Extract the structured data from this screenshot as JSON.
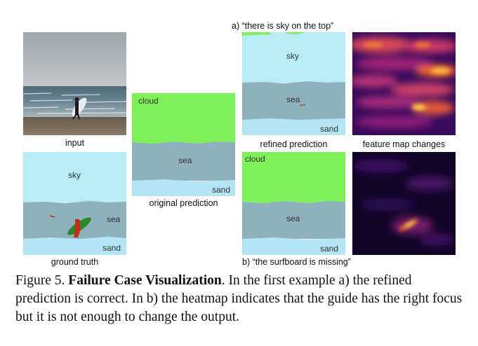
{
  "figure": {
    "label": "Figure 5.",
    "title": "Failure Case Visualization",
    "text": ". In the first example a) the refined prediction is correct. In b) the heatmap indicates that the guide has the right focus but it is not enough to change the output."
  },
  "headers": {
    "example_a": "a) “there is sky on the top”",
    "example_b": "b) “the surfboard is missing”"
  },
  "captions": {
    "input": "input",
    "ground_truth": "ground truth",
    "original_prediction": "original prediction",
    "refined_prediction": "refined prediction",
    "feature_map_changes": "feature map changes"
  },
  "segment_labels": {
    "sky": "sky",
    "sea": "sea",
    "sand": "sand",
    "cloud": "cloud"
  },
  "colors": {
    "sky": "#b8ecf6",
    "sea": "#8fb0bd",
    "sand": "#b3e5f4",
    "cloud": "#7ef05a",
    "person": "#c92b18",
    "surfboard": "#2a8a2a"
  }
}
